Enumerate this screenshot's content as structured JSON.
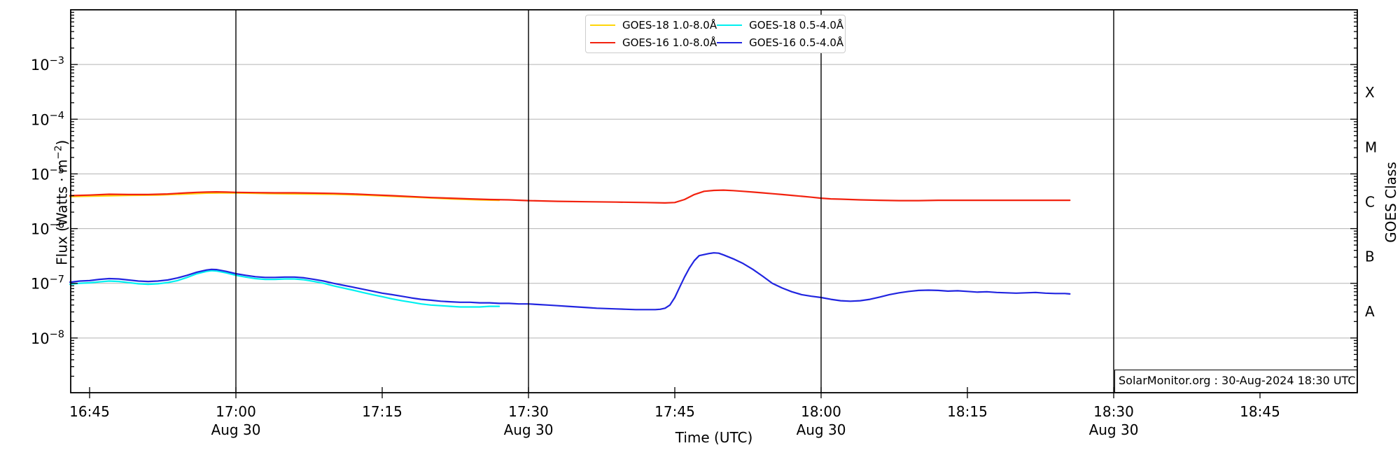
{
  "plot": {
    "y_axis_label_prefix": "Flux (Watts · m",
    "y_axis_label_exp": "−2",
    "y_axis_label_suffix": ")",
    "x_axis_label": "Time (UTC)",
    "right_axis_label": "GOES Class",
    "watermark": "SolarMonitor.org : 30-Aug-2024 18:30 UTC"
  },
  "legend": {
    "items": [
      {
        "label": "GOES-18 1.0-8.0Å",
        "color": "#ffd60a"
      },
      {
        "label": "GOES-16 1.0-8.0Å",
        "color": "#f2220f"
      },
      {
        "label": "GOES-18 0.5-4.0Å",
        "color": "#00f0f0"
      },
      {
        "label": "GOES-16 0.5-4.0Å",
        "color": "#2125e0"
      }
    ]
  },
  "chart_data": {
    "type": "line",
    "x_unit": "minutes after 16:00 UTC on 30-Aug-2024",
    "x_range_minutes": [
      43,
      175
    ],
    "y_scale": "log10",
    "ylim": [
      1e-09,
      0.01
    ],
    "grid_exponents": [
      -3,
      -4,
      -5,
      -6,
      -7,
      -8
    ],
    "day_marker_minutes": [
      60,
      90,
      120,
      150
    ],
    "x_ticks": [
      {
        "t": 45,
        "label": "16:45"
      },
      {
        "t": 60,
        "label": "17:00",
        "sub": "Aug 30"
      },
      {
        "t": 75,
        "label": "17:15"
      },
      {
        "t": 90,
        "label": "17:30",
        "sub": "Aug 30"
      },
      {
        "t": 105,
        "label": "17:45"
      },
      {
        "t": 120,
        "label": "18:00",
        "sub": "Aug 30"
      },
      {
        "t": 135,
        "label": "18:15"
      },
      {
        "t": 150,
        "label": "18:30",
        "sub": "Aug 30"
      },
      {
        "t": 165,
        "label": "18:45"
      }
    ],
    "y_ticks": [
      {
        "exp": -3,
        "base": "10",
        "exp_text": "−3"
      },
      {
        "exp": -4,
        "base": "10",
        "exp_text": "−4"
      },
      {
        "exp": -5,
        "base": "10",
        "exp_text": "−5"
      },
      {
        "exp": -6,
        "base": "10",
        "exp_text": "−6"
      },
      {
        "exp": -7,
        "base": "10",
        "exp_text": "−7"
      },
      {
        "exp": -8,
        "base": "10",
        "exp_text": "−8"
      }
    ],
    "goes_classes": [
      {
        "label": "X",
        "exp": -3.5
      },
      {
        "label": "M",
        "exp": -4.5
      },
      {
        "label": "C",
        "exp": -5.5
      },
      {
        "label": "B",
        "exp": -6.5
      },
      {
        "label": "A",
        "exp": -7.5
      }
    ],
    "series": [
      {
        "name": "GOES-18 1.0-8.0Å",
        "color": "#ffd60a",
        "width": 2.2,
        "points": [
          [
            43,
            3.85e-06
          ],
          [
            46,
            3.95e-06
          ],
          [
            49,
            4.05e-06
          ],
          [
            52,
            4.1e-06
          ],
          [
            55,
            4.3e-06
          ],
          [
            57,
            4.45e-06
          ],
          [
            59,
            4.5e-06
          ],
          [
            61,
            4.45e-06
          ],
          [
            64,
            4.35e-06
          ],
          [
            67,
            4.3e-06
          ],
          [
            70,
            4.25e-06
          ],
          [
            73,
            4.1e-06
          ],
          [
            76,
            3.9e-06
          ],
          [
            79,
            3.7e-06
          ],
          [
            82,
            3.5e-06
          ],
          [
            85,
            3.35e-06
          ],
          [
            87,
            3.3e-06
          ]
        ]
      },
      {
        "name": "GOES-16 1.0-8.0Å",
        "color": "#f2220f",
        "width": 2.2,
        "points": [
          [
            43,
            4e-06
          ],
          [
            45,
            4.1e-06
          ],
          [
            47,
            4.25e-06
          ],
          [
            49,
            4.2e-06
          ],
          [
            51,
            4.2e-06
          ],
          [
            53,
            4.3e-06
          ],
          [
            55,
            4.5e-06
          ],
          [
            56,
            4.6e-06
          ],
          [
            57,
            4.65e-06
          ],
          [
            58,
            4.7e-06
          ],
          [
            59,
            4.65e-06
          ],
          [
            60,
            4.6e-06
          ],
          [
            62,
            4.55e-06
          ],
          [
            64,
            4.5e-06
          ],
          [
            66,
            4.5e-06
          ],
          [
            68,
            4.45e-06
          ],
          [
            70,
            4.4e-06
          ],
          [
            72,
            4.3e-06
          ],
          [
            74,
            4.15e-06
          ],
          [
            76,
            4e-06
          ],
          [
            78,
            3.85e-06
          ],
          [
            80,
            3.7e-06
          ],
          [
            82,
            3.6e-06
          ],
          [
            84,
            3.5e-06
          ],
          [
            86,
            3.4e-06
          ],
          [
            88,
            3.35e-06
          ],
          [
            90,
            3.25e-06
          ],
          [
            93,
            3.15e-06
          ],
          [
            96,
            3.1e-06
          ],
          [
            99,
            3.05e-06
          ],
          [
            102,
            3e-06
          ],
          [
            104,
            2.95e-06
          ],
          [
            105,
            3e-06
          ],
          [
            106,
            3.4e-06
          ],
          [
            107,
            4.2e-06
          ],
          [
            108,
            4.8e-06
          ],
          [
            109,
            5e-06
          ],
          [
            110,
            5.05e-06
          ],
          [
            111,
            4.95e-06
          ],
          [
            112,
            4.8e-06
          ],
          [
            113,
            4.65e-06
          ],
          [
            114,
            4.5e-06
          ],
          [
            115,
            4.35e-06
          ],
          [
            116,
            4.2e-06
          ],
          [
            117,
            4.05e-06
          ],
          [
            118,
            3.9e-06
          ],
          [
            119,
            3.75e-06
          ],
          [
            120,
            3.6e-06
          ],
          [
            121,
            3.5e-06
          ],
          [
            122,
            3.45e-06
          ],
          [
            124,
            3.35e-06
          ],
          [
            126,
            3.3e-06
          ],
          [
            128,
            3.25e-06
          ],
          [
            130,
            3.25e-06
          ],
          [
            132,
            3.3e-06
          ],
          [
            134,
            3.3e-06
          ],
          [
            136,
            3.3e-06
          ],
          [
            138,
            3.3e-06
          ],
          [
            140,
            3.3e-06
          ],
          [
            142,
            3.3e-06
          ],
          [
            144,
            3.3e-06
          ],
          [
            145.5,
            3.3e-06
          ]
        ]
      },
      {
        "name": "GOES-18 0.5-4.0Å",
        "color": "#00f0f0",
        "width": 2.2,
        "points": [
          [
            43,
            9.6e-08
          ],
          [
            44,
            1e-07
          ],
          [
            45,
            1.02e-07
          ],
          [
            46,
            1.06e-07
          ],
          [
            47,
            1.1e-07
          ],
          [
            48,
            1.08e-07
          ],
          [
            49,
            1.03e-07
          ],
          [
            50,
            9.8e-08
          ],
          [
            51,
            9.6e-08
          ],
          [
            52,
            9.8e-08
          ],
          [
            53,
            1.03e-07
          ],
          [
            54,
            1.12e-07
          ],
          [
            55,
            1.28e-07
          ],
          [
            56,
            1.5e-07
          ],
          [
            57,
            1.65e-07
          ],
          [
            57.5,
            1.7e-07
          ],
          [
            58,
            1.68e-07
          ],
          [
            59,
            1.55e-07
          ],
          [
            60,
            1.4e-07
          ],
          [
            61,
            1.3e-07
          ],
          [
            62,
            1.22e-07
          ],
          [
            63,
            1.18e-07
          ],
          [
            64,
            1.18e-07
          ],
          [
            65,
            1.2e-07
          ],
          [
            66,
            1.2e-07
          ],
          [
            67,
            1.16e-07
          ],
          [
            68,
            1.08e-07
          ],
          [
            69,
            1e-07
          ],
          [
            70,
            9e-08
          ],
          [
            71,
            8.2e-08
          ],
          [
            72,
            7.5e-08
          ],
          [
            73,
            6.8e-08
          ],
          [
            74,
            6.2e-08
          ],
          [
            75,
            5.7e-08
          ],
          [
            76,
            5.2e-08
          ],
          [
            77,
            4.8e-08
          ],
          [
            78,
            4.5e-08
          ],
          [
            79,
            4.2e-08
          ],
          [
            80,
            4e-08
          ],
          [
            81,
            3.9e-08
          ],
          [
            82,
            3.8e-08
          ],
          [
            83,
            3.7e-08
          ],
          [
            84,
            3.7e-08
          ],
          [
            85,
            3.7e-08
          ],
          [
            86,
            3.8e-08
          ],
          [
            87,
            3.8e-08
          ]
        ]
      },
      {
        "name": "GOES-16 0.5-4.0Å",
        "color": "#2125e0",
        "width": 2.2,
        "points": [
          [
            43,
            1.05e-07
          ],
          [
            44,
            1.1e-07
          ],
          [
            45,
            1.12e-07
          ],
          [
            46,
            1.18e-07
          ],
          [
            47,
            1.22e-07
          ],
          [
            48,
            1.2e-07
          ],
          [
            49,
            1.15e-07
          ],
          [
            50,
            1.1e-07
          ],
          [
            51,
            1.08e-07
          ],
          [
            52,
            1.1e-07
          ],
          [
            53,
            1.15e-07
          ],
          [
            54,
            1.25e-07
          ],
          [
            55,
            1.4e-07
          ],
          [
            56,
            1.6e-07
          ],
          [
            57,
            1.75e-07
          ],
          [
            57.5,
            1.8e-07
          ],
          [
            58,
            1.78e-07
          ],
          [
            59,
            1.65e-07
          ],
          [
            60,
            1.5e-07
          ],
          [
            61,
            1.4e-07
          ],
          [
            62,
            1.32e-07
          ],
          [
            63,
            1.28e-07
          ],
          [
            64,
            1.28e-07
          ],
          [
            65,
            1.3e-07
          ],
          [
            66,
            1.3e-07
          ],
          [
            67,
            1.26e-07
          ],
          [
            68,
            1.18e-07
          ],
          [
            69,
            1.1e-07
          ],
          [
            70,
            1e-07
          ],
          [
            71,
            9.2e-08
          ],
          [
            72,
            8.5e-08
          ],
          [
            73,
            7.8e-08
          ],
          [
            74,
            7.2e-08
          ],
          [
            75,
            6.6e-08
          ],
          [
            76,
            6.2e-08
          ],
          [
            77,
            5.8e-08
          ],
          [
            78,
            5.4e-08
          ],
          [
            79,
            5.1e-08
          ],
          [
            80,
            4.9e-08
          ],
          [
            81,
            4.7e-08
          ],
          [
            82,
            4.6e-08
          ],
          [
            83,
            4.5e-08
          ],
          [
            84,
            4.5e-08
          ],
          [
            85,
            4.4e-08
          ],
          [
            86,
            4.4e-08
          ],
          [
            87,
            4.3e-08
          ],
          [
            88,
            4.3e-08
          ],
          [
            89,
            4.2e-08
          ],
          [
            90,
            4.2e-08
          ],
          [
            91,
            4.1e-08
          ],
          [
            92,
            4e-08
          ],
          [
            93,
            3.9e-08
          ],
          [
            94,
            3.8e-08
          ],
          [
            95,
            3.7e-08
          ],
          [
            96,
            3.6e-08
          ],
          [
            97,
            3.5e-08
          ],
          [
            98,
            3.45e-08
          ],
          [
            99,
            3.4e-08
          ],
          [
            100,
            3.35e-08
          ],
          [
            101,
            3.3e-08
          ],
          [
            102,
            3.3e-08
          ],
          [
            103,
            3.3e-08
          ],
          [
            103.5,
            3.35e-08
          ],
          [
            104,
            3.5e-08
          ],
          [
            104.5,
            4e-08
          ],
          [
            105,
            5.5e-08
          ],
          [
            105.5,
            8.5e-08
          ],
          [
            106,
            1.3e-07
          ],
          [
            106.5,
            1.9e-07
          ],
          [
            107,
            2.6e-07
          ],
          [
            107.5,
            3.2e-07
          ],
          [
            108,
            3.35e-07
          ],
          [
            108.5,
            3.5e-07
          ],
          [
            109,
            3.6e-07
          ],
          [
            109.5,
            3.55e-07
          ],
          [
            110,
            3.3e-07
          ],
          [
            111,
            2.8e-07
          ],
          [
            112,
            2.3e-07
          ],
          [
            113,
            1.8e-07
          ],
          [
            114,
            1.35e-07
          ],
          [
            115,
            1e-07
          ],
          [
            116,
            8.2e-08
          ],
          [
            117,
            7e-08
          ],
          [
            118,
            6.2e-08
          ],
          [
            119,
            5.8e-08
          ],
          [
            120,
            5.5e-08
          ],
          [
            121,
            5.1e-08
          ],
          [
            122,
            4.8e-08
          ],
          [
            123,
            4.7e-08
          ],
          [
            124,
            4.8e-08
          ],
          [
            125,
            5.1e-08
          ],
          [
            126,
            5.6e-08
          ],
          [
            127,
            6.2e-08
          ],
          [
            128,
            6.7e-08
          ],
          [
            129,
            7.1e-08
          ],
          [
            130,
            7.4e-08
          ],
          [
            131,
            7.5e-08
          ],
          [
            132,
            7.4e-08
          ],
          [
            133,
            7.2e-08
          ],
          [
            134,
            7.3e-08
          ],
          [
            135,
            7.1e-08
          ],
          [
            136,
            6.9e-08
          ],
          [
            137,
            7e-08
          ],
          [
            138,
            6.8e-08
          ],
          [
            139,
            6.7e-08
          ],
          [
            140,
            6.6e-08
          ],
          [
            141,
            6.7e-08
          ],
          [
            142,
            6.8e-08
          ],
          [
            143,
            6.6e-08
          ],
          [
            144,
            6.5e-08
          ],
          [
            145,
            6.5e-08
          ],
          [
            145.5,
            6.4e-08
          ]
        ]
      }
    ]
  }
}
